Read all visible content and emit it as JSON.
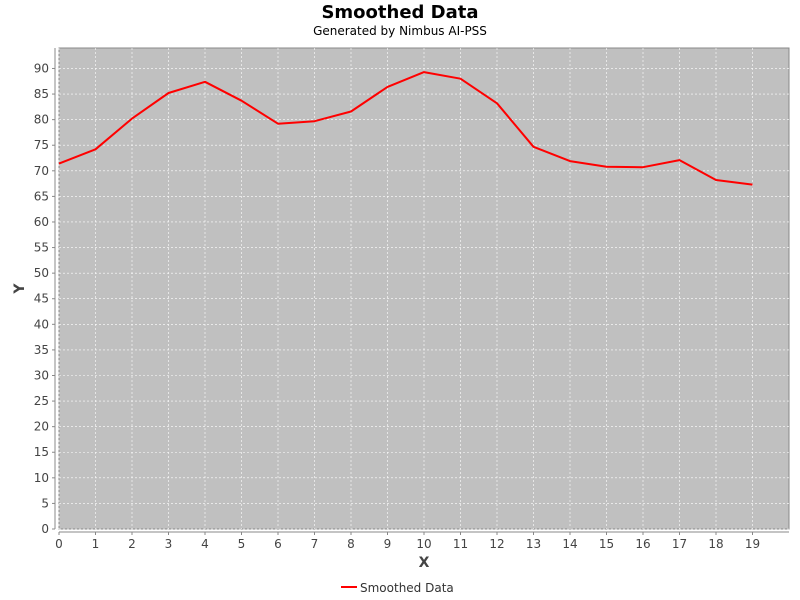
{
  "chart_data": {
    "type": "line",
    "title": "Smoothed Data",
    "subtitle": "Generated by Nimbus AI-PSS",
    "xlabel": "X",
    "ylabel": "Y",
    "xlim": [
      0,
      20
    ],
    "ylim": [
      0,
      94
    ],
    "x_ticks": [
      0,
      1,
      2,
      3,
      4,
      5,
      6,
      7,
      8,
      9,
      10,
      11,
      12,
      13,
      14,
      15,
      16,
      17,
      18,
      19
    ],
    "y_ticks": [
      0,
      5,
      10,
      15,
      20,
      25,
      30,
      35,
      40,
      45,
      50,
      55,
      60,
      65,
      70,
      75,
      80,
      85,
      90
    ],
    "grid": true,
    "legend_position": "bottom",
    "series": [
      {
        "name": "Smoothed Data",
        "color": "#ff0000",
        "x": [
          0,
          1,
          2,
          3,
          4,
          5,
          6,
          7,
          8,
          9,
          10,
          11,
          12,
          13,
          14,
          15,
          16,
          17,
          18,
          19
        ],
        "y": [
          71.4,
          74.2,
          80.2,
          85.2,
          87.4,
          83.7,
          79.2,
          79.7,
          81.6,
          86.4,
          89.3,
          88.0,
          83.2,
          74.7,
          71.9,
          70.8,
          70.7,
          72.1,
          68.2,
          67.3
        ]
      }
    ]
  },
  "colors": {
    "plot_background": "#c0c0c0",
    "gridline": "#ffffff",
    "series": "#ff0000"
  }
}
